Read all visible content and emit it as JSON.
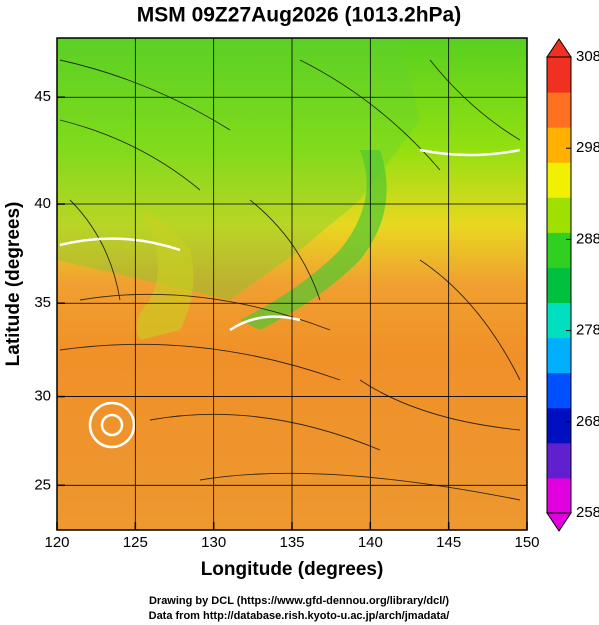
{
  "chart_data": {
    "type": "map",
    "title": "MSM 09Z27Aug2026 (1013.2hPa)",
    "x_label": "Longitude (degrees)",
    "y_label": "Latitude  (degrees)",
    "xlim": [
      120,
      150
    ],
    "xticks": [
      120,
      125,
      130,
      135,
      140,
      145,
      150
    ],
    "ylim": [
      22.4,
      47.6
    ],
    "yticks": [
      25,
      30,
      35,
      40,
      45
    ],
    "yscale": "mercator",
    "grid": true,
    "colorbar": {
      "lim": [
        258,
        308
      ],
      "ticks": [
        258,
        268,
        278,
        288,
        298,
        308
      ],
      "colors": [
        "#e000e0",
        "#6020d0",
        "#0010c0",
        "#0050ff",
        "#00b0ff",
        "#00e0c0",
        "#00c040",
        "#30d020",
        "#a0e000",
        "#f0f000",
        "#ffb000",
        "#ff7020",
        "#f03020"
      ]
    },
    "footer": [
      "Drawing by DCL (https://www.gfd-dennou.org/library/dcl/)",
      "Data from http://database.rish.kyoto-u.ac.jp/arch/jmadata/"
    ]
  }
}
